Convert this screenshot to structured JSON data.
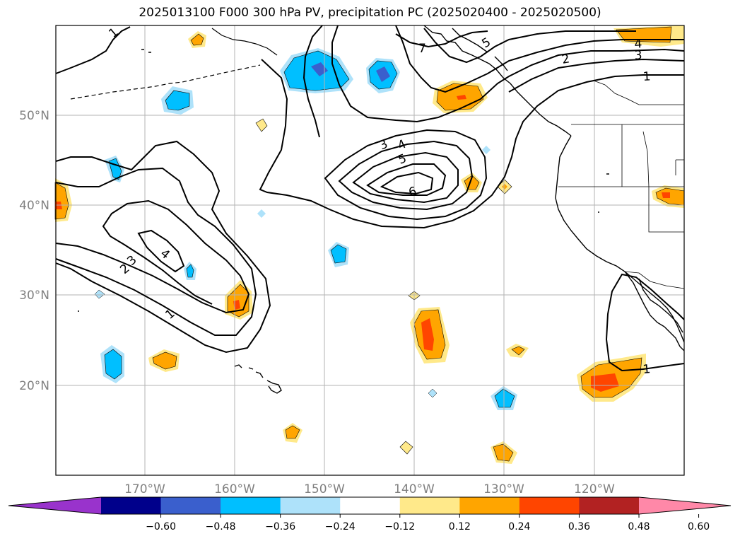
{
  "title": "2025013100 F000 300 hPa PV, precipitation PC (2025020400 - 2025020500)",
  "lon_labels": [
    "170°W",
    "160°W",
    "150°W",
    "140°W",
    "130°W",
    "120°W"
  ],
  "lat_labels": [
    "50°N",
    "40°N",
    "30°N",
    "20°N"
  ],
  "colorbar": {
    "ticks": [
      "−0.60",
      "−0.48",
      "−0.36",
      "−0.24",
      "−0.12",
      "0.12",
      "0.24",
      "0.36",
      "0.48",
      "0.60"
    ],
    "colors": [
      "#9933cc",
      "#00008b",
      "#3a5fcd",
      "#00bfff",
      "#aee2fa",
      "#ffffff",
      "#ffe98a",
      "#ffa500",
      "#ff4500",
      "#b22222",
      "#ff88a8"
    ]
  },
  "contour_labels": {
    "c1a": "1",
    "c7": "7",
    "c5a": "5",
    "c2a": "2",
    "c4a": "4",
    "c3a": "3",
    "c1b": "1",
    "c3b": "3",
    "c4b": "4",
    "c5b": "5",
    "c6": "6",
    "c4c": "4",
    "c3c": "3",
    "c2c": "2",
    "c1c": "1",
    "c1d": "1"
  },
  "colors": {
    "land_line": "#000000",
    "grid": "#b3b3b3",
    "contour": "#000000"
  }
}
